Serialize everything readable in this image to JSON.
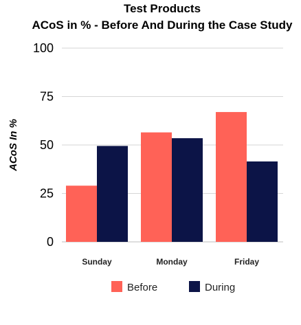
{
  "chart_data": {
    "type": "bar",
    "title": "Test Products",
    "subtitle": "ACoS in % - Before And During the Case Study",
    "ylabel": "ACoS In %",
    "xlabel": "",
    "categories": [
      "Sunday",
      "Monday",
      "Friday"
    ],
    "series": [
      {
        "name": "Before",
        "color": "#ff6257",
        "values": [
          29,
          56.5,
          67
        ]
      },
      {
        "name": "During",
        "color": "#0c1447",
        "values": [
          49.5,
          53.5,
          41.5
        ]
      }
    ],
    "ylim": [
      0,
      100
    ],
    "yticks": [
      "0",
      "25",
      "50",
      "75",
      "100"
    ],
    "grid": true,
    "legend": "bottom"
  }
}
